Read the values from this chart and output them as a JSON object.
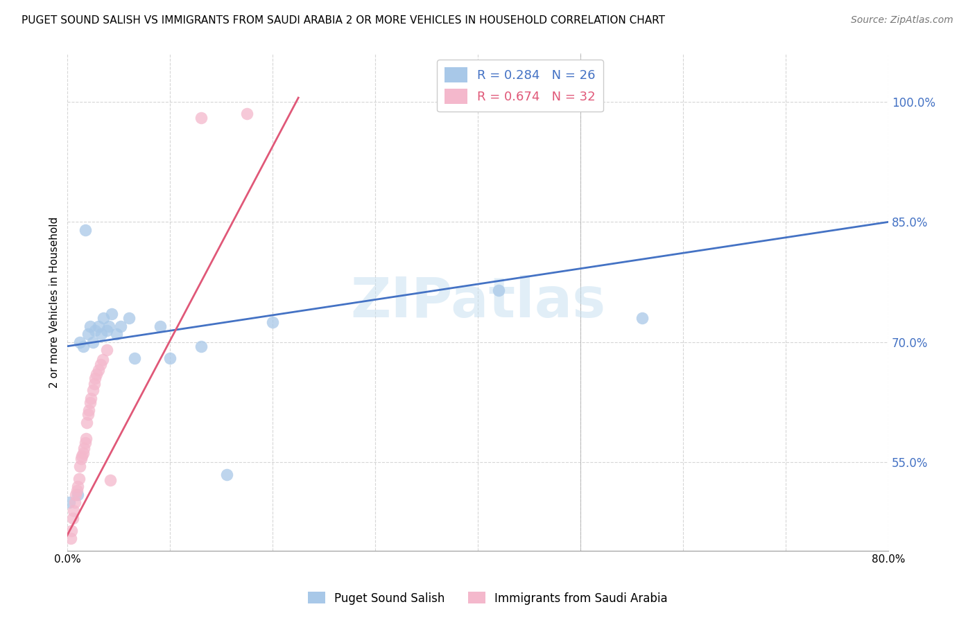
{
  "title": "PUGET SOUND SALISH VS IMMIGRANTS FROM SAUDI ARABIA 2 OR MORE VEHICLES IN HOUSEHOLD CORRELATION CHART",
  "source": "Source: ZipAtlas.com",
  "ylabel": "2 or more Vehicles in Household",
  "xlim": [
    0.0,
    0.8
  ],
  "ylim": [
    0.44,
    1.06
  ],
  "yticks": [
    0.55,
    0.7,
    0.85,
    1.0
  ],
  "ytick_labels": [
    "55.0%",
    "70.0%",
    "85.0%",
    "100.0%"
  ],
  "xticks": [
    0.0,
    0.1,
    0.2,
    0.3,
    0.4,
    0.5,
    0.6,
    0.7,
    0.8
  ],
  "xtick_labels": [
    "0.0%",
    "",
    "",
    "",
    "",
    "",
    "",
    "",
    "80.0%"
  ],
  "watermark": "ZIPatlas",
  "blue_R": 0.284,
  "blue_N": 26,
  "pink_R": 0.674,
  "pink_N": 32,
  "blue_color": "#a8c8e8",
  "pink_color": "#f4b8cc",
  "blue_line_color": "#4472c4",
  "pink_line_color": "#e05878",
  "legend_blue_label": "Puget Sound Salish",
  "legend_pink_label": "Immigrants from Saudi Arabia",
  "blue_scatter_x": [
    0.002,
    0.01,
    0.012,
    0.015,
    0.017,
    0.02,
    0.022,
    0.025,
    0.027,
    0.03,
    0.033,
    0.035,
    0.038,
    0.04,
    0.043,
    0.048,
    0.052,
    0.06,
    0.065,
    0.09,
    0.1,
    0.13,
    0.155,
    0.2,
    0.42,
    0.56
  ],
  "blue_scatter_y": [
    0.5,
    0.51,
    0.7,
    0.695,
    0.84,
    0.71,
    0.72,
    0.7,
    0.715,
    0.72,
    0.71,
    0.73,
    0.715,
    0.72,
    0.735,
    0.71,
    0.72,
    0.73,
    0.68,
    0.72,
    0.68,
    0.695,
    0.535,
    0.725,
    0.765,
    0.73
  ],
  "pink_scatter_x": [
    0.003,
    0.004,
    0.005,
    0.006,
    0.007,
    0.008,
    0.009,
    0.01,
    0.011,
    0.012,
    0.013,
    0.014,
    0.015,
    0.016,
    0.017,
    0.018,
    0.019,
    0.02,
    0.021,
    0.022,
    0.023,
    0.025,
    0.026,
    0.027,
    0.028,
    0.03,
    0.032,
    0.034,
    0.038,
    0.042,
    0.13,
    0.175
  ],
  "pink_scatter_y": [
    0.455,
    0.465,
    0.48,
    0.49,
    0.5,
    0.51,
    0.515,
    0.52,
    0.53,
    0.545,
    0.555,
    0.558,
    0.562,
    0.568,
    0.575,
    0.58,
    0.6,
    0.61,
    0.615,
    0.625,
    0.63,
    0.64,
    0.648,
    0.655,
    0.66,
    0.665,
    0.672,
    0.678,
    0.69,
    0.528,
    0.98,
    0.985
  ],
  "blue_line_x": [
    0.0,
    0.8
  ],
  "blue_line_y": [
    0.695,
    0.85
  ],
  "pink_line_x": [
    -0.002,
    0.225
  ],
  "pink_line_y": [
    0.455,
    1.005
  ]
}
